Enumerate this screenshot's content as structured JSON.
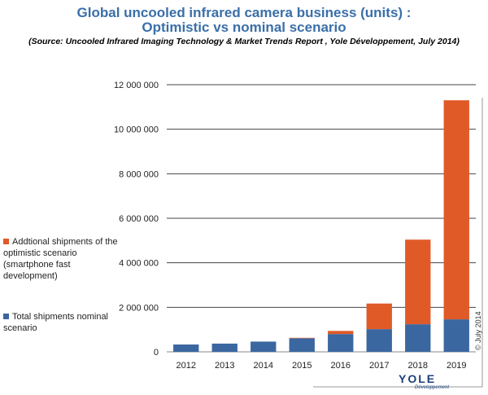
{
  "title_line1": "Global uncooled infrared camera business (units) :",
  "title_line2": "Optimistic vs nominal scenario",
  "source": "(Source: Uncooled Infrared Imaging Technology & Market Trends Report , Yole Développement, July 2014)",
  "copyright": "© July 2014",
  "logo": {
    "name": "YOLE",
    "sub": "Développement"
  },
  "chart_data": {
    "type": "bar",
    "stacked": true,
    "categories": [
      "2012",
      "2013",
      "2014",
      "2015",
      "2016",
      "2017",
      "2018",
      "2019"
    ],
    "series": [
      {
        "name": "Total shipments nominal scenario",
        "color": "#3b67a1",
        "values": [
          330000,
          370000,
          460000,
          610000,
          800000,
          1020000,
          1240000,
          1460000
        ]
      },
      {
        "name": "Addtional shipments of the optimistic scenario (smartphone fast development)",
        "color": "#e05a28",
        "values": [
          0,
          0,
          0,
          20000,
          140000,
          1150000,
          3800000,
          9840000
        ]
      }
    ],
    "ylim": [
      0,
      12000000
    ],
    "yticks": [
      0,
      2000000,
      4000000,
      6000000,
      8000000,
      10000000,
      12000000
    ],
    "ytick_labels": [
      "0",
      "2 000 000",
      "4 000 000",
      "6 000 000",
      "8 000 000",
      "10 000 000",
      "12 000 000"
    ],
    "grid": true,
    "legend": "left"
  }
}
